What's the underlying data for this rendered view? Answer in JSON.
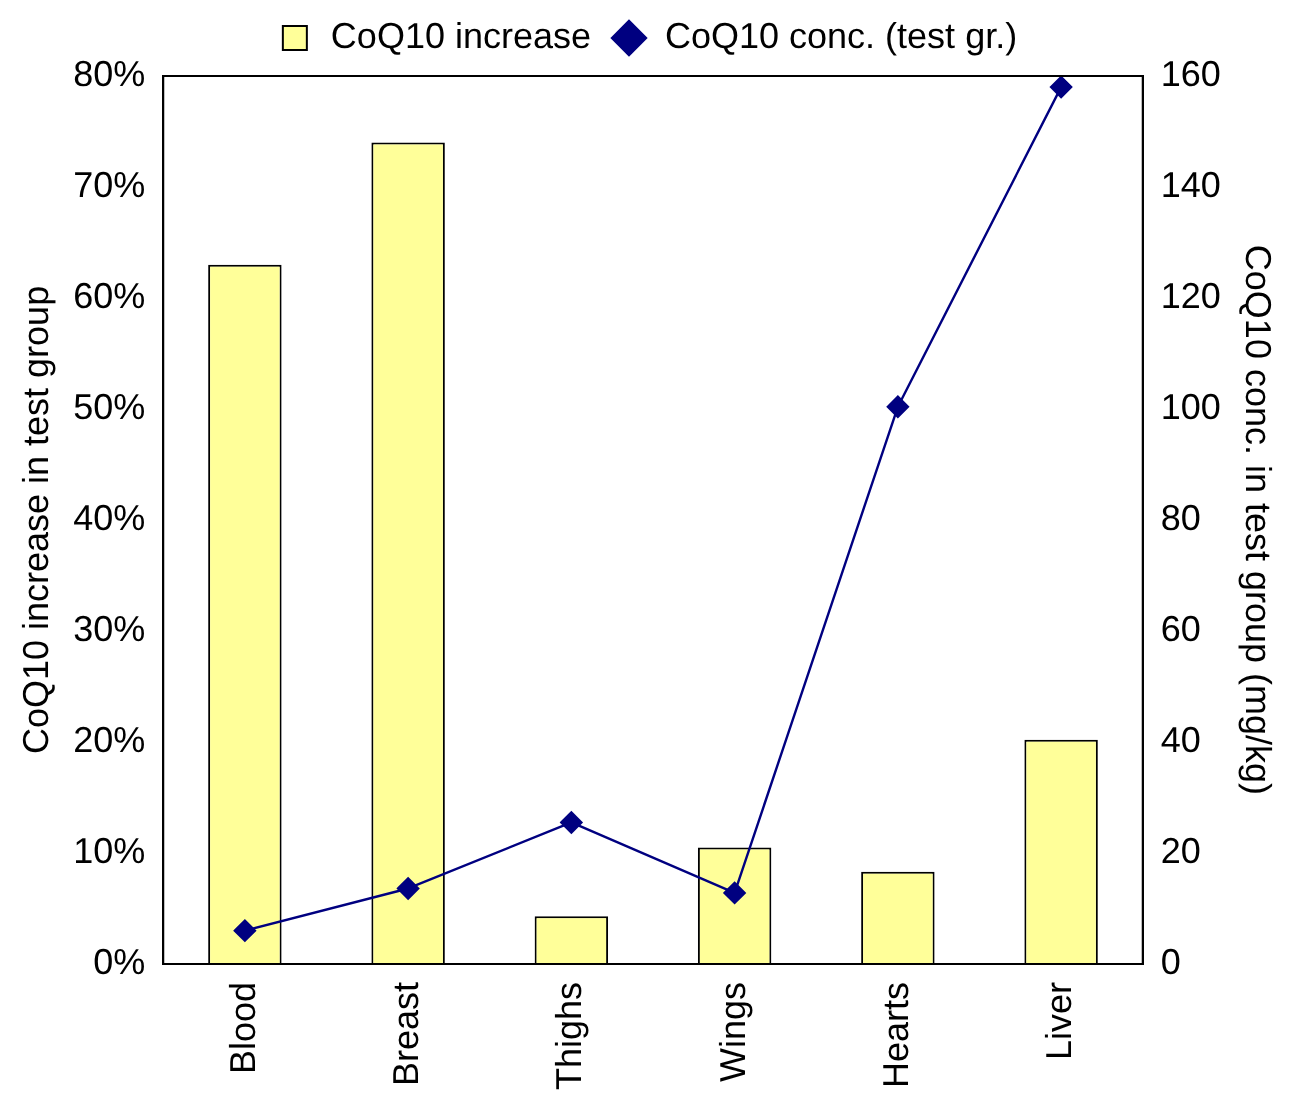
{
  "chart_data": {
    "type": "bar",
    "categories": [
      "Blood",
      "Breast",
      "Thighs",
      "Wings",
      "Hearts",
      "Liver"
    ],
    "series": [
      {
        "name": "CoQ10 increase",
        "color": "#ffff99",
        "values": [
          63,
          74,
          4.3,
          10.5,
          8.3,
          20.2
        ]
      },
      {
        "name": "CoQ10 conc. (test gr.)",
        "type": "line",
        "axis": "y2",
        "color": "#000080",
        "marker": "diamond",
        "values": [
          6,
          13.6,
          25.5,
          12.8,
          100.4,
          158
        ]
      }
    ],
    "ylabel": "CoQ10 increase in test group",
    "y2label": "CoQ10 conc. in test group (mg/kg)",
    "ylim": [
      0,
      80
    ],
    "yticks": [
      {
        "value": 0,
        "label": "0%"
      },
      {
        "value": 10,
        "label": "10%"
      },
      {
        "value": 20,
        "label": "20%"
      },
      {
        "value": 30,
        "label": "30%"
      },
      {
        "value": 40,
        "label": "40%"
      },
      {
        "value": 50,
        "label": "50%"
      },
      {
        "value": 60,
        "label": "60%"
      },
      {
        "value": 70,
        "label": "70%"
      },
      {
        "value": 80,
        "label": "80%"
      }
    ],
    "y2lim": [
      0,
      160
    ],
    "y2ticks": [
      0,
      20,
      40,
      60,
      80,
      100,
      120,
      140,
      160
    ],
    "grid": false,
    "legend": "top"
  }
}
